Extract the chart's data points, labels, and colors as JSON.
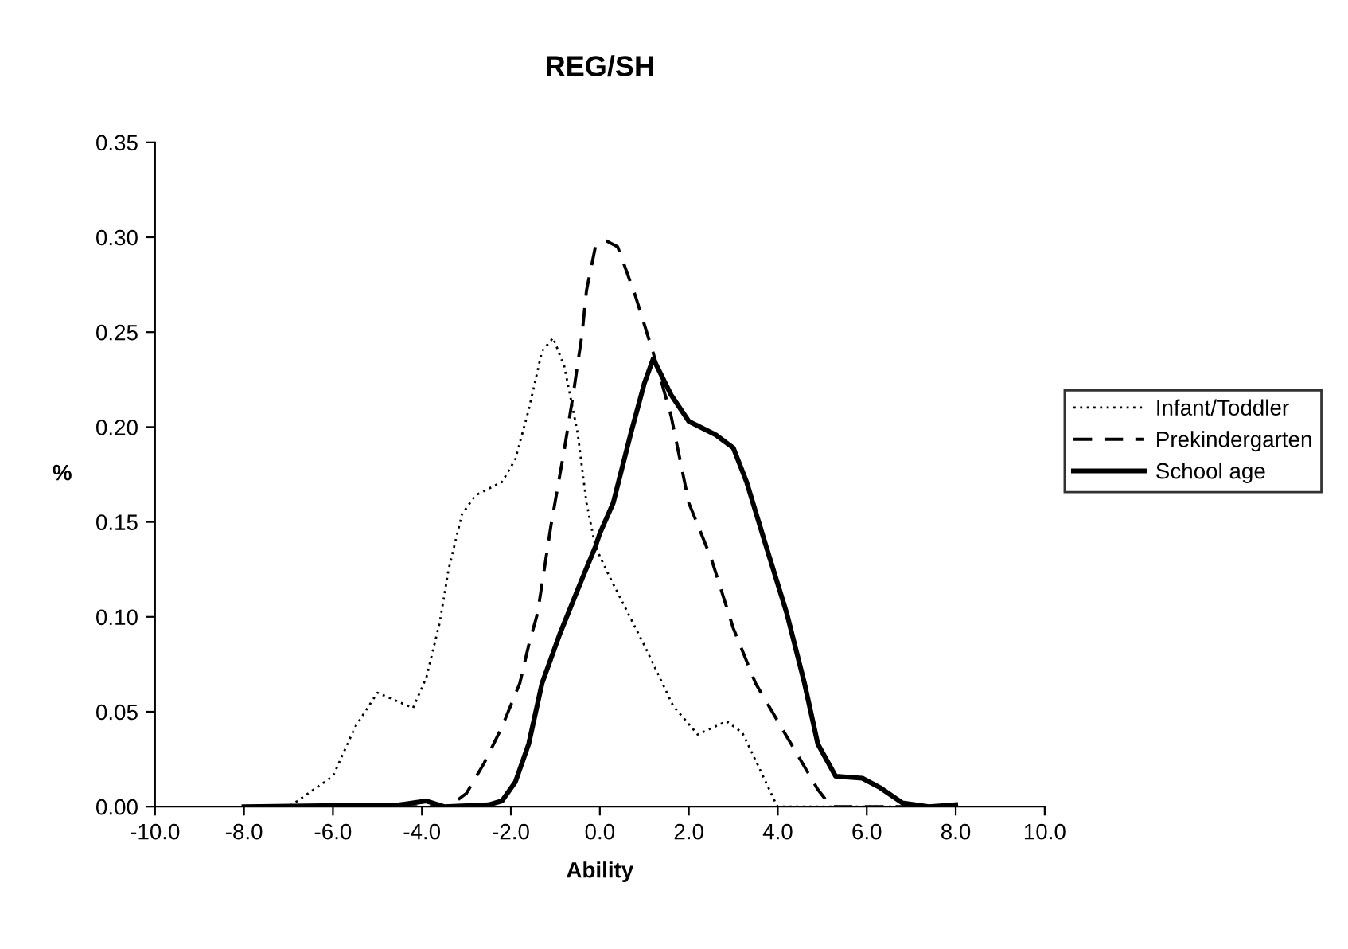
{
  "chart_data": {
    "type": "line",
    "title": "REG/SH",
    "xlabel": "Ability",
    "ylabel": "%",
    "xlim": [
      -10,
      10
    ],
    "xticks": [
      {
        "value": -10,
        "label": "-10.0"
      },
      {
        "value": -8,
        "label": "-8.0"
      },
      {
        "value": -6,
        "label": "-6.0"
      },
      {
        "value": -4,
        "label": "-4.0"
      },
      {
        "value": -2,
        "label": "-2.0"
      },
      {
        "value": 0,
        "label": "0.0"
      },
      {
        "value": 2,
        "label": "2.0"
      },
      {
        "value": 4,
        "label": "4.0"
      },
      {
        "value": 6,
        "label": "6.0"
      },
      {
        "value": 8,
        "label": "8.0"
      },
      {
        "value": 10,
        "label": "10.0"
      }
    ],
    "ylim": [
      0,
      0.35
    ],
    "yticks": [
      {
        "value": 0,
        "label": "0.00"
      },
      {
        "value": 0.05,
        "label": "0.05"
      },
      {
        "value": 0.1,
        "label": "0.10"
      },
      {
        "value": 0.15,
        "label": "0.15"
      },
      {
        "value": 0.2,
        "label": "0.20"
      },
      {
        "value": 0.25,
        "label": "0.25"
      },
      {
        "value": 0.3,
        "label": "0.30"
      },
      {
        "value": 0.35,
        "label": "0.35"
      }
    ],
    "grid": false,
    "legend": "right",
    "marker": "none",
    "series": [
      {
        "name": "Infant/Toddler",
        "color": "#000000",
        "line_style": "dotted",
        "x": [
          -8,
          -7,
          -6.8,
          -6.0,
          -5.5,
          -5.0,
          -4.6,
          -4.2,
          -3.9,
          -3.6,
          -3.4,
          -3.1,
          -2.8,
          -2.2,
          -1.9,
          -1.6,
          -1.3,
          -1.05,
          -0.8,
          -0.5,
          -0.3,
          -0.1,
          0.2,
          1.0,
          1.65,
          2.2,
          2.85,
          3.2,
          3.55,
          3.95,
          4.0,
          8.0
        ],
        "values": [
          0,
          0,
          0.003,
          0.016,
          0.042,
          0.06,
          0.056,
          0.052,
          0.068,
          0.097,
          0.125,
          0.154,
          0.164,
          0.171,
          0.183,
          0.209,
          0.24,
          0.247,
          0.232,
          0.197,
          0.16,
          0.137,
          0.122,
          0.085,
          0.053,
          0.038,
          0.045,
          0.039,
          0.022,
          0.002,
          0,
          0
        ]
      },
      {
        "name": "Prekindergarten",
        "color": "#000000",
        "line_style": "dashed",
        "x": [
          -8,
          -3.4,
          -3.0,
          -2.6,
          -2.2,
          -1.8,
          -1.6,
          -1.4,
          -1.1,
          -0.8,
          -0.6,
          -0.4,
          -0.3,
          -0.1,
          0.15,
          0.4,
          0.8,
          1.2,
          1.6,
          2.0,
          2.5,
          3.0,
          3.5,
          4.0,
          4.5,
          4.9,
          5.2,
          8.0
        ],
        "values": [
          0,
          0,
          0.007,
          0.023,
          0.042,
          0.065,
          0.085,
          0.102,
          0.148,
          0.188,
          0.217,
          0.249,
          0.272,
          0.295,
          0.298,
          0.295,
          0.269,
          0.239,
          0.206,
          0.16,
          0.131,
          0.094,
          0.065,
          0.045,
          0.025,
          0.009,
          0,
          0
        ]
      },
      {
        "name": "School age",
        "color": "#000000",
        "line_style": "solid",
        "x": [
          -8,
          -4.5,
          -3.9,
          -3.5,
          -2.5,
          -2.2,
          -1.9,
          -1.6,
          -1.3,
          -0.9,
          -0.4,
          -0.1,
          0,
          0.3,
          0.7,
          1.0,
          1.2,
          1.6,
          2.0,
          2.6,
          3.0,
          3.3,
          3.7,
          4.2,
          4.6,
          4.9,
          5.3,
          5.9,
          6.3,
          6.8,
          7.4,
          8.0
        ],
        "values": [
          0,
          0.001,
          0.003,
          0,
          0.001,
          0.003,
          0.013,
          0.033,
          0.065,
          0.091,
          0.12,
          0.137,
          0.144,
          0.16,
          0.197,
          0.223,
          0.236,
          0.217,
          0.203,
          0.196,
          0.189,
          0.171,
          0.14,
          0.102,
          0.065,
          0.033,
          0.016,
          0.015,
          0.01,
          0.002,
          0,
          0.001
        ]
      }
    ]
  }
}
